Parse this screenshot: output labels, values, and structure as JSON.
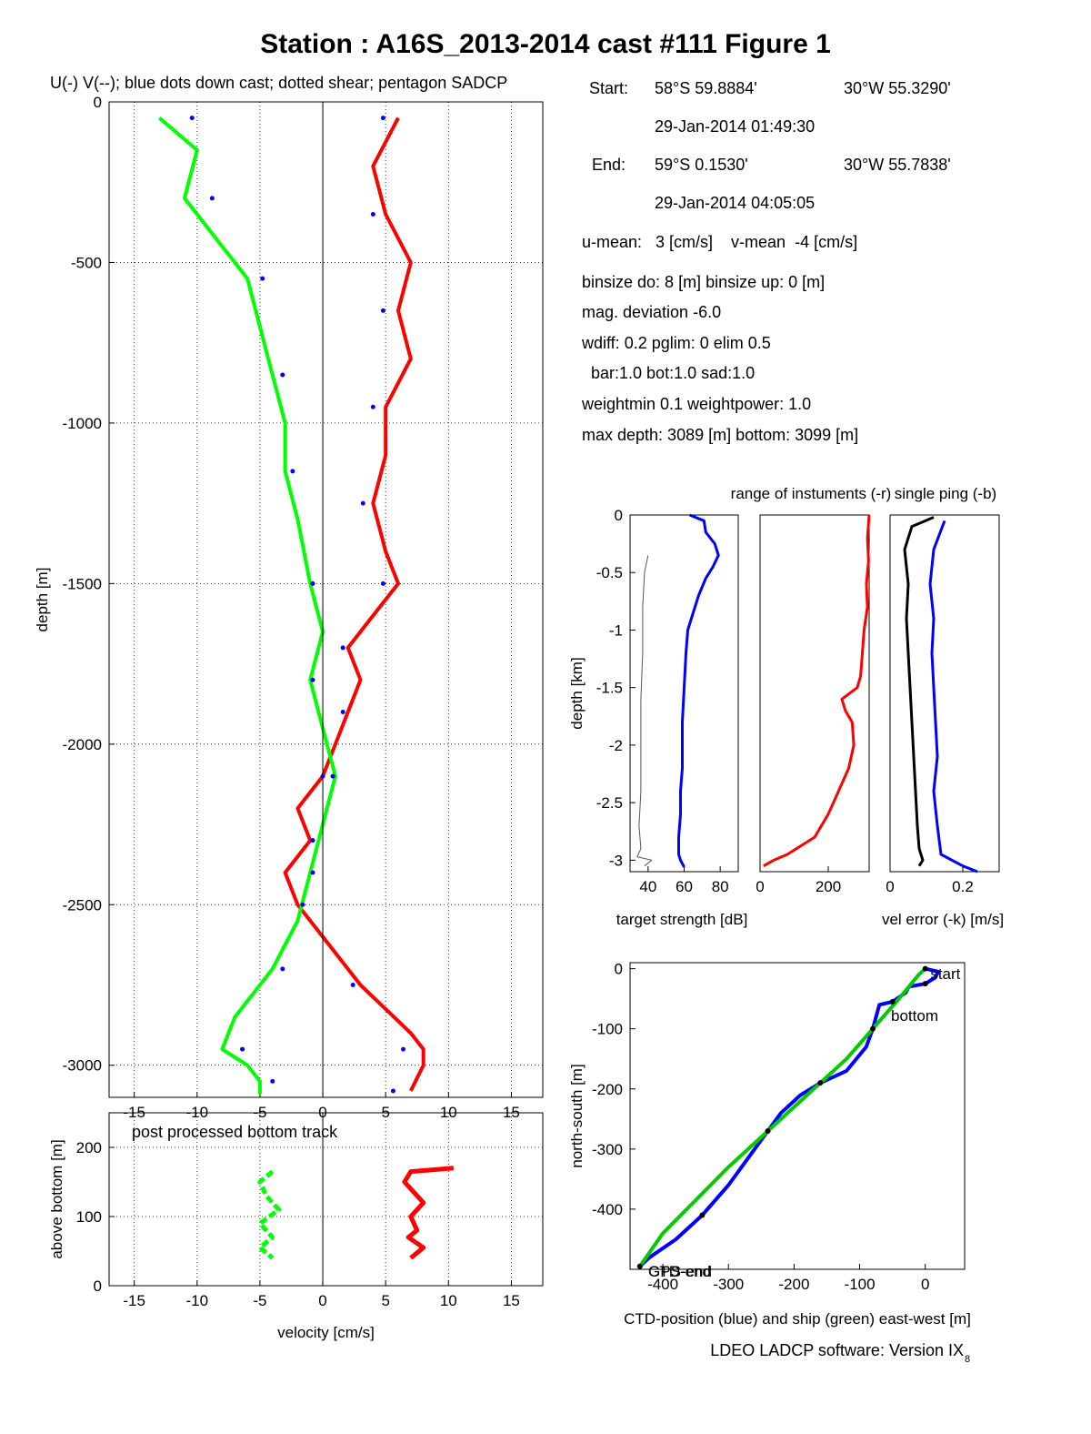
{
  "title": "Station : A16S_2013-2014 cast #111  Figure 1",
  "subtitle": "U(-) V(--); blue dots down cast; dotted shear; pentagon SADCP",
  "info": {
    "start_label": "Start:",
    "start_lat": "58°S 59.8884'",
    "start_lon": "30°W 55.3290'",
    "start_time": "29-Jan-2014 01:49:30",
    "end_label": "End:",
    "end_lat": "59°S  0.1530'",
    "end_lon": "30°W 55.7838'",
    "end_time": "29-Jan-2014 04:05:05",
    "means": "u-mean:   3 [cm/s]    v-mean  -4 [cm/s]",
    "binsize": "binsize do: 8 [m]  binsize up:  0 [m]",
    "magdev": "mag. deviation -6.0",
    "wdiff": "wdiff: 0.2  pglim: 0  elim 0.5",
    "bar": "  bar:1.0 bot:1.0 sad:1.0",
    "weight": "weightmin 0.1  weightpower: 1.0",
    "depth": "max depth: 3089 [m]   bottom: 3099 [m]"
  },
  "colors": {
    "u": "#ff0000",
    "v": "#00ff00",
    "downcast_dots": "#0000ff",
    "ts": "#0000ff",
    "range": "#ff0000",
    "verr_k": "#000000",
    "verr_b": "#0000ff",
    "ctd": "#0000ff",
    "ship": "#00cc00"
  },
  "footer": {
    "software": "LDEO LADCP software: Version IX",
    "software_sub": "8"
  },
  "chart_data": [
    {
      "id": "velocity-profile",
      "type": "line",
      "xlabel": "velocity [cm/s]",
      "ylabel": "depth [m]",
      "xlim": [
        -17,
        17.5
      ],
      "ylim": [
        -3100,
        0
      ],
      "x_ticks": [
        -15,
        -10,
        -5,
        0,
        5,
        10,
        15
      ],
      "y_ticks": [
        0,
        -500,
        -1000,
        -1500,
        -2000,
        -2500,
        -3000
      ],
      "grid": true,
      "series": [
        {
          "key": "u",
          "style": "solid",
          "x": [
            6,
            4,
            5,
            7,
            6,
            7,
            5,
            5,
            4,
            5,
            6,
            4,
            2,
            3,
            2,
            1,
            0,
            -2,
            -1,
            -3,
            -2,
            0,
            3,
            7,
            8,
            8,
            7
          ],
          "y": [
            -50,
            -200,
            -350,
            -500,
            -650,
            -800,
            -950,
            -1100,
            -1250,
            -1400,
            -1500,
            -1600,
            -1700,
            -1800,
            -1900,
            -2000,
            -2100,
            -2200,
            -2300,
            -2400,
            -2500,
            -2600,
            -2750,
            -2900,
            -2950,
            -3000,
            -3080
          ]
        },
        {
          "key": "v",
          "style": "solid",
          "x": [
            -13,
            -10,
            -11,
            -8,
            -6,
            -5,
            -4,
            -3,
            -3,
            -2,
            -1,
            0,
            -1,
            0,
            1,
            0,
            -1,
            -2,
            -4,
            -7,
            -8,
            -6,
            -5,
            -5
          ],
          "y": [
            -50,
            -150,
            -300,
            -450,
            -550,
            -700,
            -850,
            -1000,
            -1150,
            -1300,
            -1500,
            -1650,
            -1800,
            -1950,
            -2100,
            -2250,
            -2400,
            -2550,
            -2700,
            -2850,
            -2950,
            -3000,
            -3050,
            -3090
          ]
        }
      ]
    },
    {
      "id": "bottom-track",
      "type": "line",
      "annotation": "post processed bottom track",
      "xlabel": "velocity [cm/s]",
      "ylabel": "above bottom [m]",
      "xlim": [
        -17,
        17.5
      ],
      "ylim": [
        0,
        250
      ],
      "x_ticks": [
        -15,
        -10,
        -5,
        0,
        5,
        10,
        15
      ],
      "x_tick_labels": [
        "-15",
        "-10",
        "-5",
        "0",
        "5",
        "10",
        "15"
      ],
      "y_ticks": [
        0,
        100,
        200
      ],
      "grid": true,
      "series": [
        {
          "key": "u",
          "style": "solid",
          "x": [
            10.4,
            7,
            6.5,
            8,
            7,
            7.5,
            6.8,
            8,
            7
          ],
          "y": [
            170,
            165,
            150,
            120,
            100,
            80,
            70,
            55,
            40
          ]
        },
        {
          "key": "v",
          "style": "dashed",
          "x": [
            -4,
            -5,
            -4.5,
            -3.5,
            -5,
            -4,
            -5,
            -4
          ],
          "y": [
            165,
            150,
            130,
            110,
            90,
            70,
            55,
            40
          ]
        }
      ]
    },
    {
      "id": "target-strength",
      "type": "line",
      "xlabel": "target strength [dB]",
      "ylabel": "depth [km]",
      "xlim": [
        30,
        90
      ],
      "ylim": [
        -3.1,
        0
      ],
      "x_ticks": [
        40,
        60,
        80
      ],
      "y_ticks": [
        0,
        -0.5,
        -1,
        -1.5,
        -2,
        -2.5,
        -3
      ],
      "y_tick_labels": [
        "0",
        "-0.5",
        "-1",
        "-1.5",
        "-2",
        "-2.5",
        "-3"
      ],
      "series": [
        {
          "key": "ts",
          "x": [
            63,
            71,
            72,
            77,
            79,
            76,
            72,
            68,
            65,
            62,
            61,
            60,
            59,
            59,
            59,
            58,
            58,
            57,
            57,
            58,
            59,
            60
          ],
          "y": [
            0,
            -0.05,
            -0.15,
            -0.25,
            -0.35,
            -0.45,
            -0.55,
            -0.7,
            -0.85,
            -1.0,
            -1.2,
            -1.5,
            -1.8,
            -2.0,
            -2.2,
            -2.4,
            -2.6,
            -2.8,
            -2.95,
            -3.0,
            -3.03,
            -3.06
          ]
        },
        {
          "key": "grey",
          "x": [
            40,
            38,
            37,
            37,
            36,
            36,
            36,
            35,
            36,
            34,
            42,
            38
          ],
          "y": [
            -0.35,
            -0.5,
            -0.8,
            -1.2,
            -1.6,
            -2.0,
            -2.4,
            -2.7,
            -2.9,
            -2.97,
            -3.0,
            -3.05
          ]
        }
      ]
    },
    {
      "id": "instrument-range",
      "type": "line",
      "title": "range of instuments (-r)",
      "xlim": [
        0,
        320
      ],
      "ylim": [
        -3.1,
        0
      ],
      "x_ticks": [
        0,
        200
      ],
      "series": [
        {
          "key": "range",
          "x": [
            320,
            315,
            318,
            312,
            315,
            305,
            300,
            295,
            285,
            240,
            250,
            270,
            275,
            260,
            230,
            200,
            160,
            80,
            40,
            10
          ],
          "y": [
            0,
            -0.2,
            -0.4,
            -0.6,
            -0.8,
            -1.0,
            -1.2,
            -1.4,
            -1.5,
            -1.6,
            -1.7,
            -1.8,
            -2.0,
            -2.2,
            -2.4,
            -2.6,
            -2.8,
            -2.95,
            -3.0,
            -3.05
          ]
        }
      ]
    },
    {
      "id": "velocity-error",
      "type": "line",
      "title": "single ping (-b)",
      "xlabel": "vel error (-k) [m/s]",
      "xlim": [
        0,
        0.3
      ],
      "ylim": [
        -3.1,
        0
      ],
      "x_ticks": [
        0,
        0.2
      ],
      "series": [
        {
          "key": "verr_k",
          "x": [
            0.12,
            0.06,
            0.04,
            0.05,
            0.045,
            0.05,
            0.055,
            0.06,
            0.065,
            0.07,
            0.075,
            0.08,
            0.09,
            0.08
          ],
          "y": [
            -0.02,
            -0.1,
            -0.3,
            -0.6,
            -0.9,
            -1.2,
            -1.5,
            -1.8,
            -2.1,
            -2.4,
            -2.7,
            -2.9,
            -3.0,
            -3.05
          ]
        },
        {
          "key": "verr_b",
          "x": [
            0.15,
            0.12,
            0.11,
            0.12,
            0.115,
            0.12,
            0.125,
            0.13,
            0.12,
            0.13,
            0.14,
            0.2,
            0.24
          ],
          "y": [
            -0.05,
            -0.3,
            -0.6,
            -0.9,
            -1.2,
            -1.5,
            -1.8,
            -2.1,
            -2.4,
            -2.7,
            -2.95,
            -3.05,
            -3.1
          ]
        }
      ]
    },
    {
      "id": "ctd-ship-track",
      "type": "line",
      "xlabel": "CTD-position (blue) and ship (green) east-west [m]",
      "ylabel": "north-south [m]",
      "xlim": [
        -450,
        60
      ],
      "ylim": [
        -500,
        10
      ],
      "x_ticks": [
        -400,
        -300,
        -200,
        -100,
        0
      ],
      "y_ticks": [
        0,
        -100,
        -200,
        -300,
        -400
      ],
      "annotations": [
        {
          "text": "start",
          "x": 5,
          "y": -5
        },
        {
          "text": "bottom",
          "x": -55,
          "y": -75
        },
        {
          "text": "GPS-end",
          "x": -425,
          "y": -500
        },
        {
          "text": "CTD-end",
          "x": -425,
          "y": -500
        }
      ],
      "series": [
        {
          "key": "ctd",
          "x": [
            0,
            20,
            15,
            0,
            -25,
            -30,
            -50,
            -70,
            -75,
            -80,
            -90,
            -120,
            -160,
            -190,
            -220,
            -240,
            -260,
            -300,
            -340,
            -380,
            -420,
            -435
          ],
          "y": [
            0,
            -5,
            -15,
            -25,
            -30,
            -40,
            -55,
            -60,
            -80,
            -100,
            -130,
            -170,
            -190,
            -210,
            -240,
            -270,
            -300,
            -360,
            -410,
            -450,
            -480,
            -495
          ]
        },
        {
          "key": "ship",
          "x": [
            0,
            -10,
            -40,
            -80,
            -120,
            -200,
            -300,
            -400,
            -435
          ],
          "y": [
            0,
            -10,
            -50,
            -100,
            -150,
            -230,
            -330,
            -440,
            -495
          ]
        }
      ]
    }
  ]
}
